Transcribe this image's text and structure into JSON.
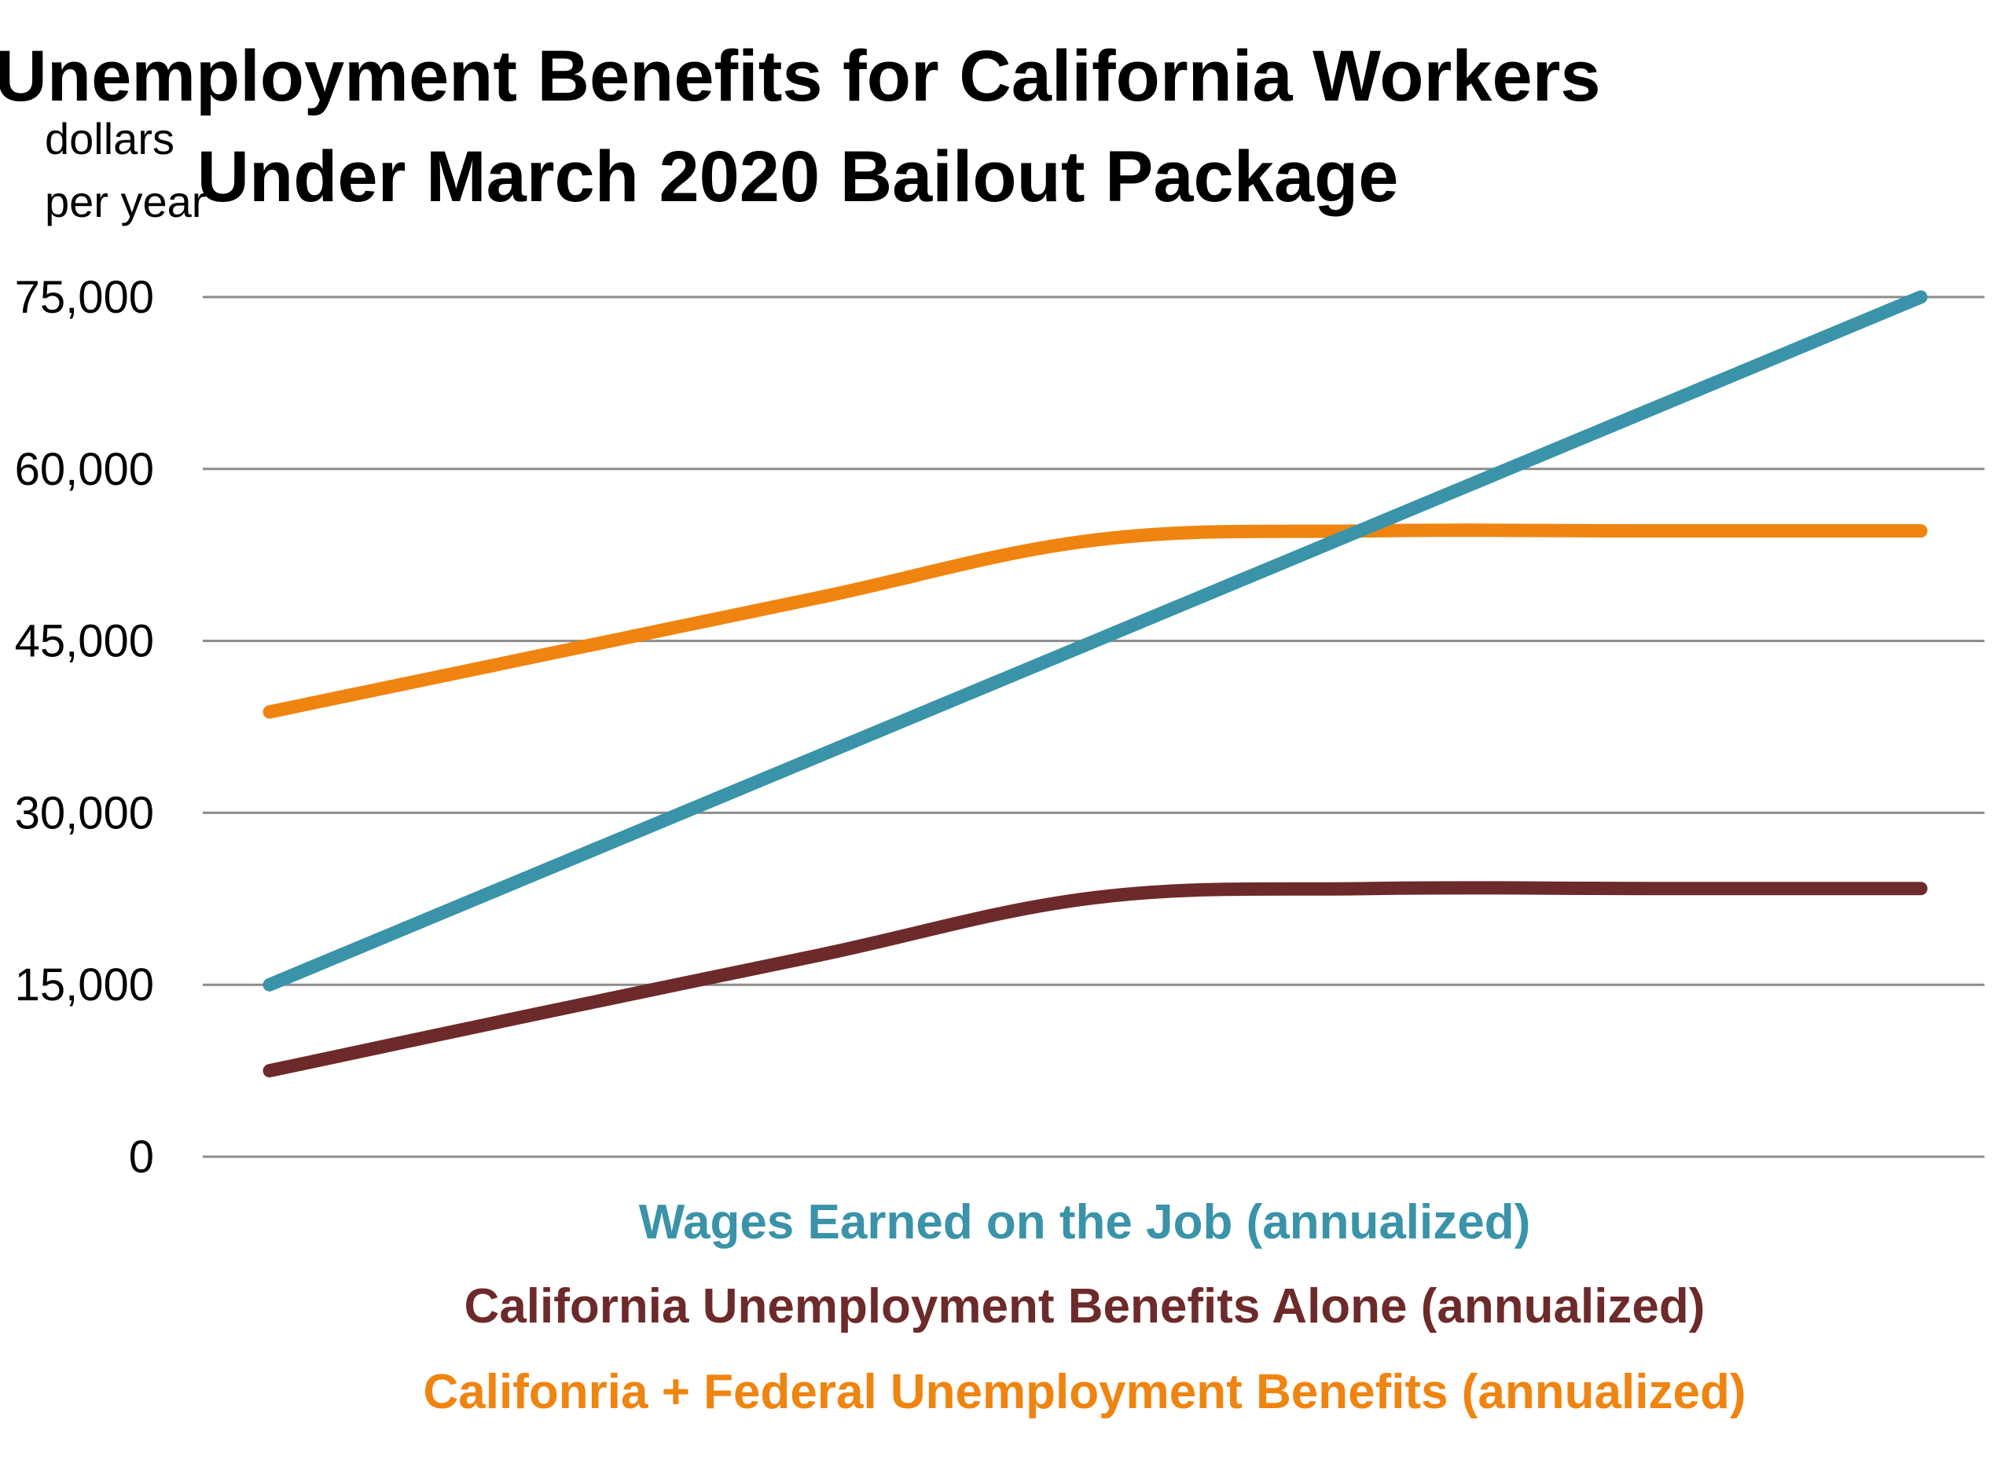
{
  "chart_data": {
    "type": "line",
    "title": "Unemployment Benefits for California Workers Under March 2020 Bailout Package",
    "title_lines": [
      "Unemployment Benefits for California Workers",
      "Under March 2020 Bailout Package"
    ],
    "ylabel": "dollars per year",
    "ylabel_lines": [
      "dollars",
      "per year"
    ],
    "xlabel": "",
    "ylim": [
      0,
      75000
    ],
    "yticks": [
      0,
      15000,
      30000,
      45000,
      60000,
      75000
    ],
    "ytick_labels": [
      "0",
      "15,000",
      "30,000",
      "45,000",
      "60,000",
      "75,000"
    ],
    "x": [
      15000,
      25000,
      35000,
      45000,
      55000,
      65000,
      75000
    ],
    "xlim": [
      15000,
      75000
    ],
    "grid": true,
    "legend_position": "bottom",
    "series": [
      {
        "name": "Wages Earned on the Job (annualized)",
        "color": "#3a93a8",
        "values": [
          15000,
          25000,
          35000,
          45000,
          55000,
          65000,
          75000
        ]
      },
      {
        "name": "California Unemployment Benefits Alone (annualized)",
        "color": "#6d2a2a",
        "values": [
          7500,
          12600,
          17600,
          22600,
          23400,
          23400,
          23400
        ]
      },
      {
        "name": "Califonria + Federal Unemployment Benefits (annualized)",
        "color": "#ef8410",
        "values": [
          38800,
          43800,
          48800,
          53800,
          54600,
          54600,
          54600
        ]
      }
    ]
  }
}
